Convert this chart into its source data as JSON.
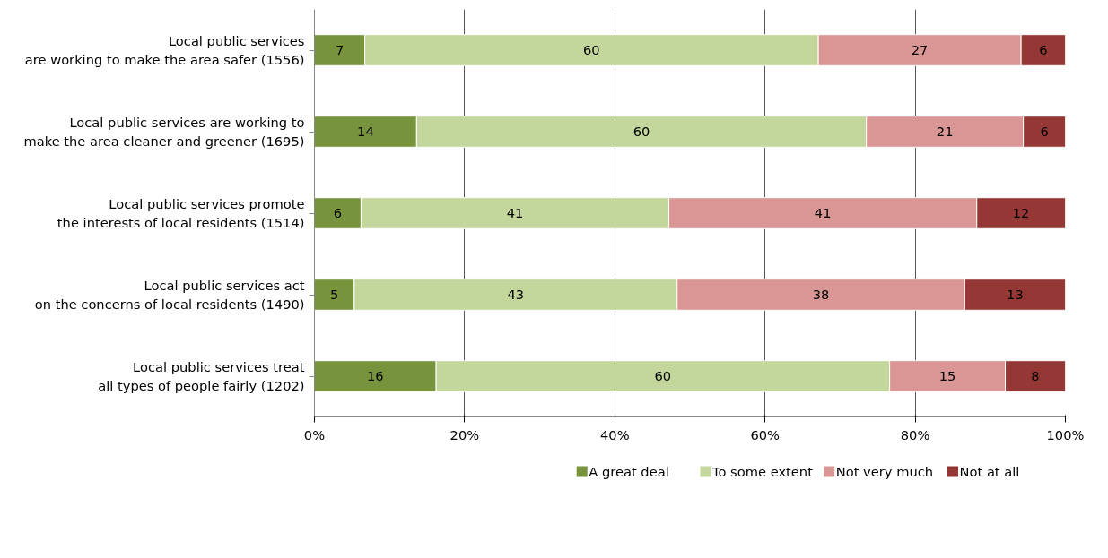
{
  "chart_data": {
    "type": "bar",
    "orientation": "horizontal",
    "stacked": true,
    "categories": [
      "Local public services\nare working to make the area safer (1556)",
      "Local public services are working to\nmake the area cleaner and greener (1695)",
      "Local public services promote\nthe interests of local residents (1514)",
      "Local public services act\non the concerns of local residents (1490)",
      "Local public services treat\nall types of people fairly (1202)"
    ],
    "series": [
      {
        "name": "A great deal",
        "color": "#77933c",
        "values": [
          6.7,
          13.6,
          6.2,
          5.3,
          16.2
        ],
        "value_labels": [
          "7",
          "14",
          "6",
          "5",
          "16"
        ]
      },
      {
        "name": "To some extent",
        "color": "#c3d69b",
        "values": [
          60.4,
          59.9,
          41.0,
          43.0,
          60.4
        ],
        "value_labels": [
          "60",
          "60",
          "41",
          "43",
          "60"
        ]
      },
      {
        "name": "Not very much",
        "color": "#d99694",
        "values": [
          27.0,
          20.9,
          41.0,
          38.3,
          15.4
        ],
        "value_labels": [
          "27",
          "21",
          "41",
          "38",
          "15"
        ]
      },
      {
        "name": "Not at all",
        "color": "#953735",
        "values": [
          5.9,
          5.6,
          11.8,
          13.4,
          8.0
        ],
        "value_labels": [
          "6",
          "6",
          "12",
          "13",
          "8"
        ]
      }
    ],
    "xlim": [
      0,
      100
    ],
    "xticks": [
      {
        "value": 0,
        "label": "0%"
      },
      {
        "value": 20,
        "label": "20%"
      },
      {
        "value": 40,
        "label": "40%"
      },
      {
        "value": 60,
        "label": "60%"
      },
      {
        "value": 80,
        "label": "80%"
      },
      {
        "value": 100,
        "label": "100%"
      }
    ],
    "grid": "x",
    "legend": "bottom"
  }
}
